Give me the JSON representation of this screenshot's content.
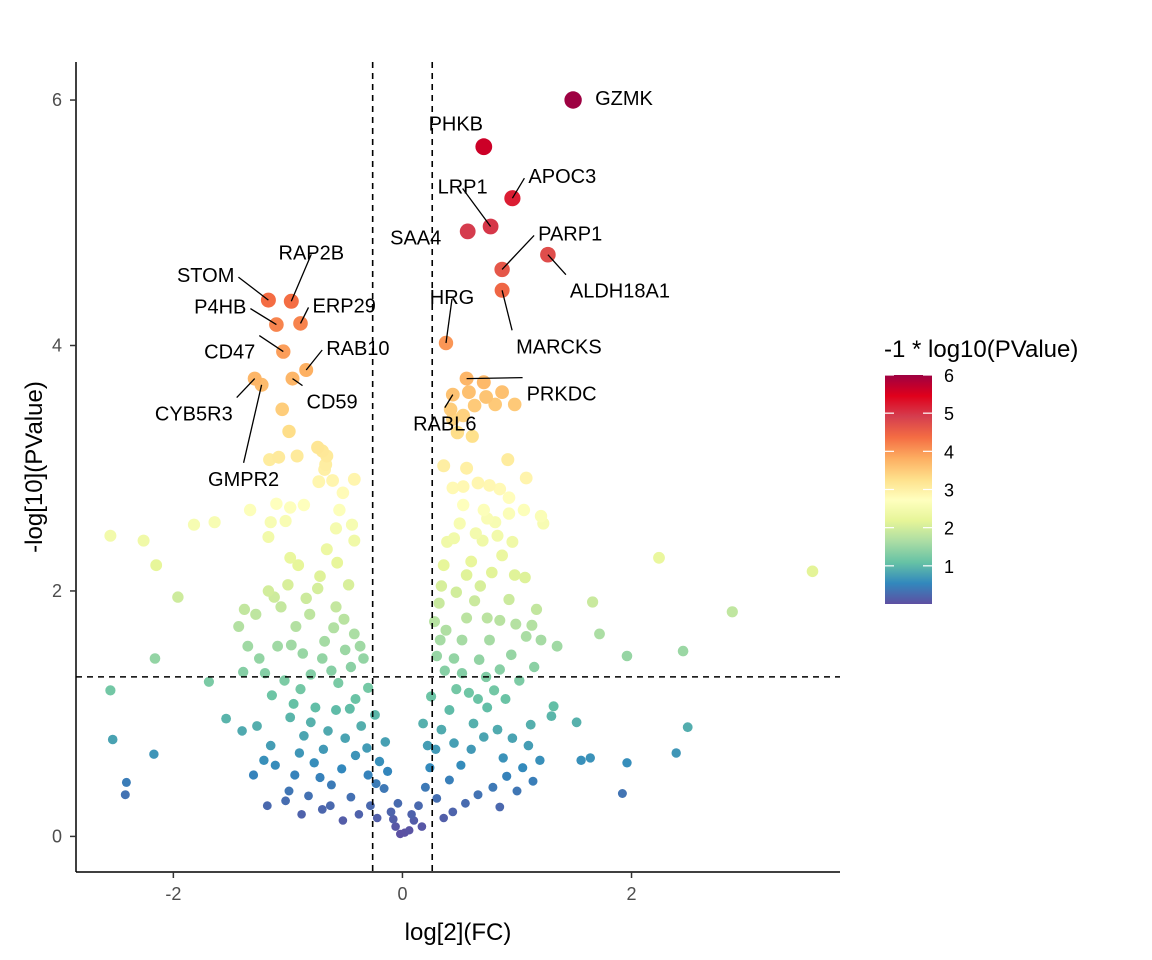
{
  "chart_data": {
    "type": "scatter",
    "title": "",
    "xlabel": "log[2](FC)",
    "ylabel": "-log[10](PValue)",
    "xlim": [
      -2.85,
      3.82
    ],
    "ylim": [
      -0.29,
      6.31
    ],
    "x_ticks": [
      {
        "value": -2,
        "label": "-2"
      },
      {
        "value": 0,
        "label": "0"
      },
      {
        "value": 2,
        "label": "2"
      }
    ],
    "y_ticks": [
      {
        "value": 0,
        "label": "0"
      },
      {
        "value": 2,
        "label": "2"
      },
      {
        "value": 4,
        "label": "4"
      },
      {
        "value": 6,
        "label": "6"
      }
    ],
    "grid": false,
    "thresholds": {
      "fc_lines": [
        -0.26,
        0.26
      ],
      "p_line": 1.3
    },
    "legend": {
      "title": "-1 * log10(PValue)",
      "placement": "right",
      "ticks": [
        {
          "value": 1,
          "label": "1"
        },
        {
          "value": 2,
          "label": "2"
        },
        {
          "value": 3,
          "label": "3"
        },
        {
          "value": 4,
          "label": "4"
        },
        {
          "value": 5,
          "label": "5"
        },
        {
          "value": 6,
          "label": "6"
        }
      ],
      "range": [
        0,
        6
      ],
      "colors": [
        "#5e4fa2",
        "#3288bd",
        "#66c2a5",
        "#abdda4",
        "#e6f598",
        "#ffffbf",
        "#fee08b",
        "#fdae61",
        "#f46d43",
        "#d53e4f",
        "#e0001b",
        "#9e0142"
      ]
    },
    "labeled_points": [
      {
        "label": "GZMK",
        "x": 1.49,
        "y": 6.0
      },
      {
        "label": "PHKB",
        "x": 0.71,
        "y": 5.62
      },
      {
        "label": "APOC3",
        "x": 0.96,
        "y": 5.2
      },
      {
        "label": "LRP1",
        "x": 0.77,
        "y": 4.97
      },
      {
        "label": "SAA4",
        "x": 0.57,
        "y": 4.93
      },
      {
        "label": "PARP1",
        "x": 0.87,
        "y": 4.62
      },
      {
        "label": "ALDH18A1",
        "x": 1.27,
        "y": 4.74
      },
      {
        "label": "MARCKS",
        "x": 0.87,
        "y": 4.45
      },
      {
        "label": "HRG",
        "x": 0.38,
        "y": 4.02
      },
      {
        "label": "PRKDC",
        "x": 0.56,
        "y": 3.73
      },
      {
        "label": "RABL6",
        "x": 0.44,
        "y": 3.6
      },
      {
        "label": "STOM",
        "x": -1.17,
        "y": 4.37
      },
      {
        "label": "RAP2B",
        "x": -0.97,
        "y": 4.36
      },
      {
        "label": "P4HB",
        "x": -1.1,
        "y": 4.17
      },
      {
        "label": "ERP29",
        "x": -0.89,
        "y": 4.18
      },
      {
        "label": "CD47",
        "x": -1.04,
        "y": 3.95
      },
      {
        "label": "RAB10",
        "x": -0.84,
        "y": 3.8
      },
      {
        "label": "CD59",
        "x": -0.96,
        "y": 3.73
      },
      {
        "label": "CYB5R3",
        "x": -1.29,
        "y": 3.73
      },
      {
        "label": "GMPR2",
        "x": -1.23,
        "y": 3.68
      }
    ],
    "points": [
      [
        -2.55,
        2.45
      ],
      [
        -2.26,
        2.41
      ],
      [
        -2.15,
        2.21
      ],
      [
        -1.96,
        1.95
      ],
      [
        -1.82,
        2.54
      ],
      [
        -1.64,
        2.56
      ],
      [
        -2.55,
        1.19
      ],
      [
        -2.53,
        0.79
      ],
      [
        -2.41,
        0.44
      ],
      [
        -2.42,
        0.34
      ],
      [
        -2.17,
        0.67
      ],
      [
        -2.16,
        1.45
      ],
      [
        -1.69,
        1.26
      ],
      [
        -1.54,
        0.96
      ],
      [
        -1.4,
        0.86
      ],
      [
        -1.3,
        0.5
      ],
      [
        -1.18,
        0.25
      ],
      [
        -1.17,
        2.44
      ],
      [
        -1.15,
        2.56
      ],
      [
        -1.02,
        2.57
      ],
      [
        -0.98,
        2.27
      ],
      [
        -0.91,
        2.21
      ],
      [
        -0.72,
        2.12
      ],
      [
        -0.66,
        2.34
      ],
      [
        -0.58,
        2.51
      ],
      [
        -0.55,
        2.66
      ],
      [
        -0.44,
        2.54
      ],
      [
        -0.52,
        2.8
      ],
      [
        -0.61,
        2.9
      ],
      [
        -0.68,
        2.99
      ],
      [
        -0.73,
        2.89
      ],
      [
        -0.86,
        2.7
      ],
      [
        -0.98,
        2.68
      ],
      [
        -1.1,
        2.71
      ],
      [
        -1.33,
        2.66
      ],
      [
        -1.16,
        3.07
      ],
      [
        -1.08,
        3.09
      ],
      [
        -0.92,
        3.1
      ],
      [
        -0.74,
        3.17
      ],
      [
        -0.67,
        3.03
      ],
      [
        -0.66,
        3.1
      ],
      [
        -0.42,
        2.91
      ],
      [
        -0.99,
        3.3
      ],
      [
        -1.05,
        3.48
      ],
      [
        -0.7,
        3.14
      ],
      [
        -1.12,
        1.95
      ],
      [
        -1.28,
        1.81
      ],
      [
        -1.43,
        1.71
      ],
      [
        -1.35,
        1.55
      ],
      [
        -1.25,
        1.45
      ],
      [
        -1.39,
        1.34
      ],
      [
        -1.38,
        1.85
      ],
      [
        -1.17,
        2.0
      ],
      [
        -1.06,
        1.87
      ],
      [
        -0.93,
        1.71
      ],
      [
        -0.81,
        1.81
      ],
      [
        -0.58,
        1.87
      ],
      [
        -0.51,
        1.77
      ],
      [
        -0.42,
        1.65
      ],
      [
        -0.37,
        1.55
      ],
      [
        -0.34,
        1.45
      ],
      [
        -0.45,
        1.38
      ],
      [
        -0.56,
        1.25
      ],
      [
        -0.3,
        1.21
      ],
      [
        -0.74,
        2.02
      ],
      [
        -0.68,
        1.59
      ],
      [
        -0.87,
        1.49
      ],
      [
        -0.97,
        1.56
      ],
      [
        -1.09,
        1.55
      ],
      [
        -0.8,
        1.32
      ],
      [
        -0.62,
        1.35
      ],
      [
        -0.5,
        1.52
      ],
      [
        -0.76,
        1.05
      ],
      [
        -0.89,
        1.2
      ],
      [
        -1.03,
        1.27
      ],
      [
        -1.14,
        1.15
      ],
      [
        -1.27,
        0.9
      ],
      [
        -1.15,
        0.74
      ],
      [
        -0.98,
        0.97
      ],
      [
        -0.86,
        0.82
      ],
      [
        -0.65,
        0.86
      ],
      [
        -0.46,
        1.04
      ],
      [
        -0.36,
        0.9
      ],
      [
        -0.24,
        0.99
      ],
      [
        -0.15,
        0.77
      ],
      [
        -0.2,
        0.61
      ],
      [
        -0.3,
        0.5
      ],
      [
        -0.41,
        0.66
      ],
      [
        -0.53,
        0.55
      ],
      [
        -0.62,
        0.42
      ],
      [
        -0.77,
        0.6
      ],
      [
        -0.94,
        0.5
      ],
      [
        -1.11,
        0.58
      ],
      [
        -1.21,
        0.62
      ],
      [
        -0.99,
        0.37
      ],
      [
        -0.82,
        0.33
      ],
      [
        -0.63,
        0.25
      ],
      [
        -0.45,
        0.32
      ],
      [
        -0.28,
        0.25
      ],
      [
        -0.16,
        0.39
      ],
      [
        -0.1,
        0.2
      ],
      [
        -0.06,
        0.08
      ],
      [
        -0.04,
        0.27
      ],
      [
        -0.22,
        0.15
      ],
      [
        -0.38,
        0.18
      ],
      [
        -0.52,
        0.13
      ],
      [
        -0.7,
        0.22
      ],
      [
        -0.88,
        0.18
      ],
      [
        -1.02,
        0.29
      ],
      [
        -0.31,
        0.72
      ],
      [
        -0.69,
        0.71
      ],
      [
        -0.8,
        0.93
      ],
      [
        -0.95,
        1.08
      ],
      [
        -0.41,
        1.12
      ],
      [
        -0.58,
        1.03
      ],
      [
        -0.23,
        0.43
      ],
      [
        -0.13,
        0.53
      ],
      [
        -0.5,
        0.8
      ],
      [
        -0.72,
        0.48
      ],
      [
        -0.9,
        0.68
      ],
      [
        -1.2,
        1.33
      ],
      [
        -0.6,
        1.7
      ],
      [
        -0.84,
        1.94
      ],
      [
        -0.47,
        2.05
      ],
      [
        -0.57,
        2.23
      ],
      [
        -0.42,
        2.41
      ],
      [
        -1.0,
        2.05
      ],
      [
        -0.7,
        1.45
      ],
      [
        2.24,
        2.27
      ],
      [
        2.88,
        1.83
      ],
      [
        3.58,
        2.16
      ],
      [
        1.66,
        1.91
      ],
      [
        1.72,
        1.65
      ],
      [
        1.96,
        1.47
      ],
      [
        2.45,
        1.51
      ],
      [
        1.21,
        1.6
      ],
      [
        1.08,
        1.63
      ],
      [
        1.35,
        1.55
      ],
      [
        1.13,
        1.72
      ],
      [
        1.32,
        1.06
      ],
      [
        1.3,
        0.98
      ],
      [
        1.52,
        0.93
      ],
      [
        1.64,
        0.64
      ],
      [
        1.56,
        0.62
      ],
      [
        1.96,
        0.6
      ],
      [
        1.92,
        0.35
      ],
      [
        2.39,
        0.68
      ],
      [
        2.49,
        0.89
      ],
      [
        1.23,
        2.55
      ],
      [
        1.06,
        2.66
      ],
      [
        0.93,
        2.76
      ],
      [
        1.08,
        2.92
      ],
      [
        0.92,
        3.07
      ],
      [
        1.21,
        2.61
      ],
      [
        0.83,
        2.45
      ],
      [
        0.74,
        2.59
      ],
      [
        0.64,
        2.47
      ],
      [
        0.53,
        2.7
      ],
      [
        0.44,
        2.84
      ],
      [
        0.36,
        3.02
      ],
      [
        0.56,
        3.0
      ],
      [
        0.53,
        2.85
      ],
      [
        0.76,
        2.86
      ],
      [
        0.71,
        2.66
      ],
      [
        0.44,
        3.4
      ],
      [
        0.48,
        3.29
      ],
      [
        0.42,
        3.48
      ],
      [
        0.63,
        3.51
      ],
      [
        0.73,
        3.58
      ],
      [
        0.81,
        3.52
      ],
      [
        0.87,
        3.62
      ],
      [
        0.53,
        3.43
      ],
      [
        0.58,
        3.62
      ],
      [
        0.71,
        3.7
      ],
      [
        0.98,
        3.52
      ],
      [
        0.45,
        2.43
      ],
      [
        0.36,
        2.21
      ],
      [
        0.34,
        2.04
      ],
      [
        0.32,
        1.9
      ],
      [
        0.28,
        1.75
      ],
      [
        0.33,
        1.6
      ],
      [
        0.3,
        1.47
      ],
      [
        0.37,
        1.35
      ],
      [
        0.45,
        1.45
      ],
      [
        0.52,
        1.6
      ],
      [
        0.56,
        1.78
      ],
      [
        0.63,
        1.92
      ],
      [
        0.68,
        2.04
      ],
      [
        0.78,
        2.15
      ],
      [
        0.87,
        2.29
      ],
      [
        0.96,
        2.4
      ],
      [
        0.98,
        2.13
      ],
      [
        1.07,
        2.11
      ],
      [
        1.17,
        1.85
      ],
      [
        0.93,
        1.93
      ],
      [
        0.85,
        1.76
      ],
      [
        0.76,
        1.6
      ],
      [
        0.67,
        1.44
      ],
      [
        0.73,
        1.3
      ],
      [
        0.85,
        1.36
      ],
      [
        0.95,
        1.48
      ],
      [
        1.02,
        1.27
      ],
      [
        0.9,
        1.12
      ],
      [
        0.74,
        1.05
      ],
      [
        0.62,
        0.92
      ],
      [
        0.58,
        1.17
      ],
      [
        0.47,
        1.2
      ],
      [
        0.41,
        1.03
      ],
      [
        0.34,
        0.87
      ],
      [
        0.29,
        0.71
      ],
      [
        0.24,
        0.56
      ],
      [
        0.2,
        0.4
      ],
      [
        0.14,
        0.25
      ],
      [
        0.1,
        0.13
      ],
      [
        0.17,
        0.08
      ],
      [
        0.06,
        0.05
      ],
      [
        0.3,
        0.31
      ],
      [
        0.41,
        0.46
      ],
      [
        0.51,
        0.58
      ],
      [
        0.6,
        0.71
      ],
      [
        0.71,
        0.81
      ],
      [
        0.83,
        0.87
      ],
      [
        0.96,
        0.8
      ],
      [
        1.1,
        0.74
      ],
      [
        1.2,
        0.62
      ],
      [
        1.05,
        0.56
      ],
      [
        0.91,
        0.49
      ],
      [
        0.79,
        0.4
      ],
      [
        0.66,
        0.34
      ],
      [
        0.55,
        0.27
      ],
      [
        0.44,
        0.2
      ],
      [
        0.36,
        0.15
      ],
      [
        0.85,
        0.24
      ],
      [
        1.0,
        0.37
      ],
      [
        1.14,
        0.45
      ],
      [
        0.25,
        1.14
      ],
      [
        0.52,
        1.33
      ],
      [
        0.66,
        1.12
      ],
      [
        0.8,
        1.19
      ],
      [
        0.45,
        0.76
      ],
      [
        0.88,
        0.64
      ],
      [
        1.12,
        0.91
      ],
      [
        0.38,
        1.68
      ],
      [
        0.47,
        1.99
      ],
      [
        0.6,
        2.24
      ],
      [
        0.7,
        2.41
      ],
      [
        0.81,
        2.56
      ],
      [
        0.93,
        2.63
      ],
      [
        0.5,
        2.55
      ],
      [
        0.39,
        2.4
      ],
      [
        0.61,
        3.26
      ],
      [
        0.66,
        2.88
      ],
      [
        0.85,
        2.83
      ],
      [
        0.99,
        1.73
      ],
      [
        1.15,
        1.38
      ],
      [
        0.18,
        0.92
      ],
      [
        0.22,
        0.74
      ],
      [
        0.56,
        2.13
      ],
      [
        0.74,
        1.78
      ],
      [
        -0.02,
        0.02
      ],
      [
        0.02,
        0.03
      ],
      [
        -0.08,
        0.14
      ],
      [
        0.08,
        0.18
      ]
    ]
  }
}
